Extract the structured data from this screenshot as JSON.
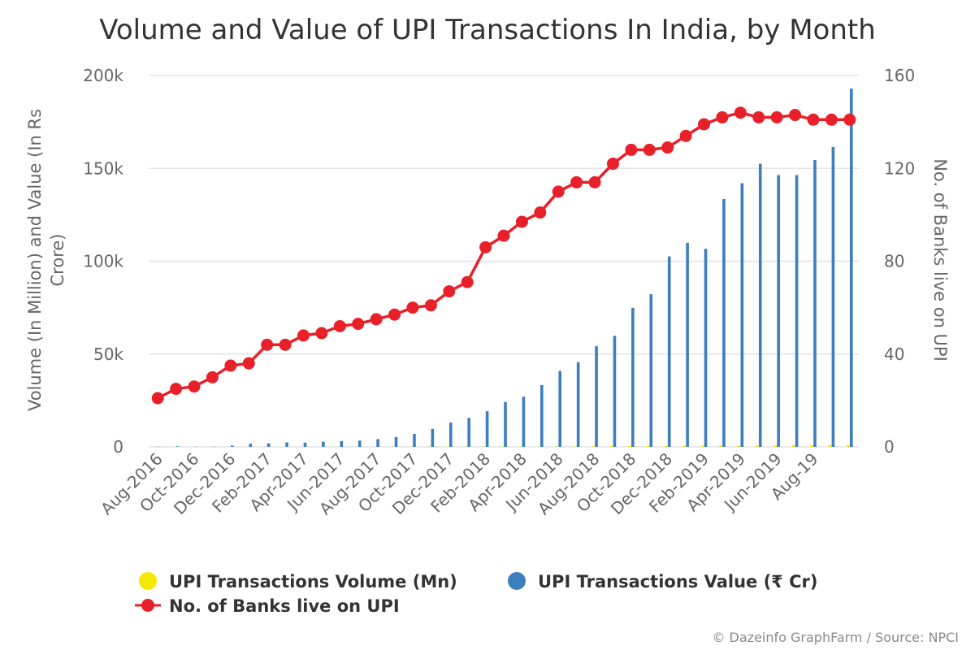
{
  "chart_data": {
    "type": "bar",
    "title": "Volume and Value of UPI Transactions In India, by Month",
    "ylabel_left": "Volume (In Million) and Value (In Rs Crore)",
    "ylabel_right": "No. of Banks live on UPI",
    "y_left": {
      "min": 0,
      "max": 200000,
      "ticks": [
        0,
        50000,
        100000,
        150000,
        200000
      ],
      "tick_labels": [
        "0",
        "50k",
        "100k",
        "150k",
        "200k"
      ]
    },
    "y_right": {
      "min": 0,
      "max": 160,
      "ticks": [
        0,
        40,
        80,
        120,
        160
      ],
      "tick_labels": [
        "0",
        "40",
        "80",
        "120",
        "160"
      ]
    },
    "grid": true,
    "legend_position": "bottom",
    "x_tick_labels": [
      "Aug-2016",
      "Oct-2016",
      "Dec-2016",
      "Feb-2017",
      "Apr-2017",
      "Jun-2017",
      "Aug-2017",
      "Oct-2017",
      "Dec-2017",
      "Feb-2018",
      "Apr-2018",
      "Jun-2018",
      "Aug-2018",
      "Oct-2018",
      "Dec-2018",
      "Feb-2019",
      "Apr-2019",
      "Jun-2019",
      "Aug-19"
    ],
    "categories": [
      "Aug-2016",
      "Sep-2016",
      "Oct-2016",
      "Nov-2016",
      "Dec-2016",
      "Jan-2017",
      "Feb-2017",
      "Mar-2017",
      "Apr-2017",
      "May-2017",
      "Jun-2017",
      "Jul-2017",
      "Aug-2017",
      "Sep-2017",
      "Oct-2017",
      "Nov-2017",
      "Dec-2017",
      "Jan-2018",
      "Feb-2018",
      "Mar-2018",
      "Apr-2018",
      "May-2018",
      "Jun-2018",
      "Jul-2018",
      "Aug-2018",
      "Sep-2018",
      "Oct-2018",
      "Nov-2018",
      "Dec-2018",
      "Jan-2019",
      "Feb-2019",
      "Mar-2019",
      "Apr-2019",
      "May-2019",
      "Jun-2019",
      "Jul-2019",
      "Aug-2019",
      "Sep-2019",
      "Oct-2019"
    ],
    "series": [
      {
        "name": "UPI Transactions Volume (Mn)",
        "type": "bar",
        "axis": "left",
        "color": "#f5e900",
        "values": [
          0.1,
          0.1,
          0.5,
          0.3,
          2,
          4.2,
          4.2,
          6.4,
          7.2,
          9.4,
          10.2,
          11.6,
          16.8,
          30.9,
          76.8,
          105,
          145.6,
          151.7,
          171.4,
          178,
          190.1,
          189.5,
          246.4,
          235.6,
          312,
          405,
          482,
          524,
          620,
          672,
          674,
          799,
          782,
          734,
          754,
          822,
          918,
          955,
          1148
        ]
      },
      {
        "name": "UPI Transactions Value (₹ Cr)",
        "type": "bar",
        "axis": "left",
        "color": "#3d7ebf",
        "values": [
          100,
          300,
          100,
          100,
          700,
          1700,
          1900,
          2400,
          2300,
          2800,
          3100,
          3400,
          4200,
          5300,
          7000,
          9700,
          13100,
          15600,
          19200,
          24200,
          27000,
          33300,
          40900,
          45600,
          54200,
          59800,
          74900,
          82200,
          102600,
          109900,
          106700,
          133500,
          142000,
          152500,
          146400,
          146400,
          154500,
          161500,
          193000
        ]
      },
      {
        "name": "No. of Banks live on UPI",
        "type": "line",
        "axis": "right",
        "color": "#e8202a",
        "values": [
          21,
          25,
          26,
          30,
          35,
          36,
          44,
          44,
          48,
          49,
          52,
          53,
          55,
          57,
          60,
          61,
          67,
          71,
          86,
          91,
          97,
          101,
          110,
          114,
          114,
          122,
          128,
          128,
          129,
          134,
          139,
          142,
          144,
          142,
          142,
          143,
          141,
          141,
          141
        ]
      }
    ]
  },
  "legend": [
    {
      "label": "UPI Transactions Volume (Mn)",
      "marker": "circle",
      "color": "#f5e900"
    },
    {
      "label": "UPI Transactions Value (₹ Cr)",
      "marker": "circle",
      "color": "#3d7ebf"
    },
    {
      "label": "No. of Banks live on UPI",
      "marker": "line-circle",
      "color": "#e8202a"
    }
  ],
  "credit": "© Dazeinfo GraphFarm / Source: NPCI"
}
